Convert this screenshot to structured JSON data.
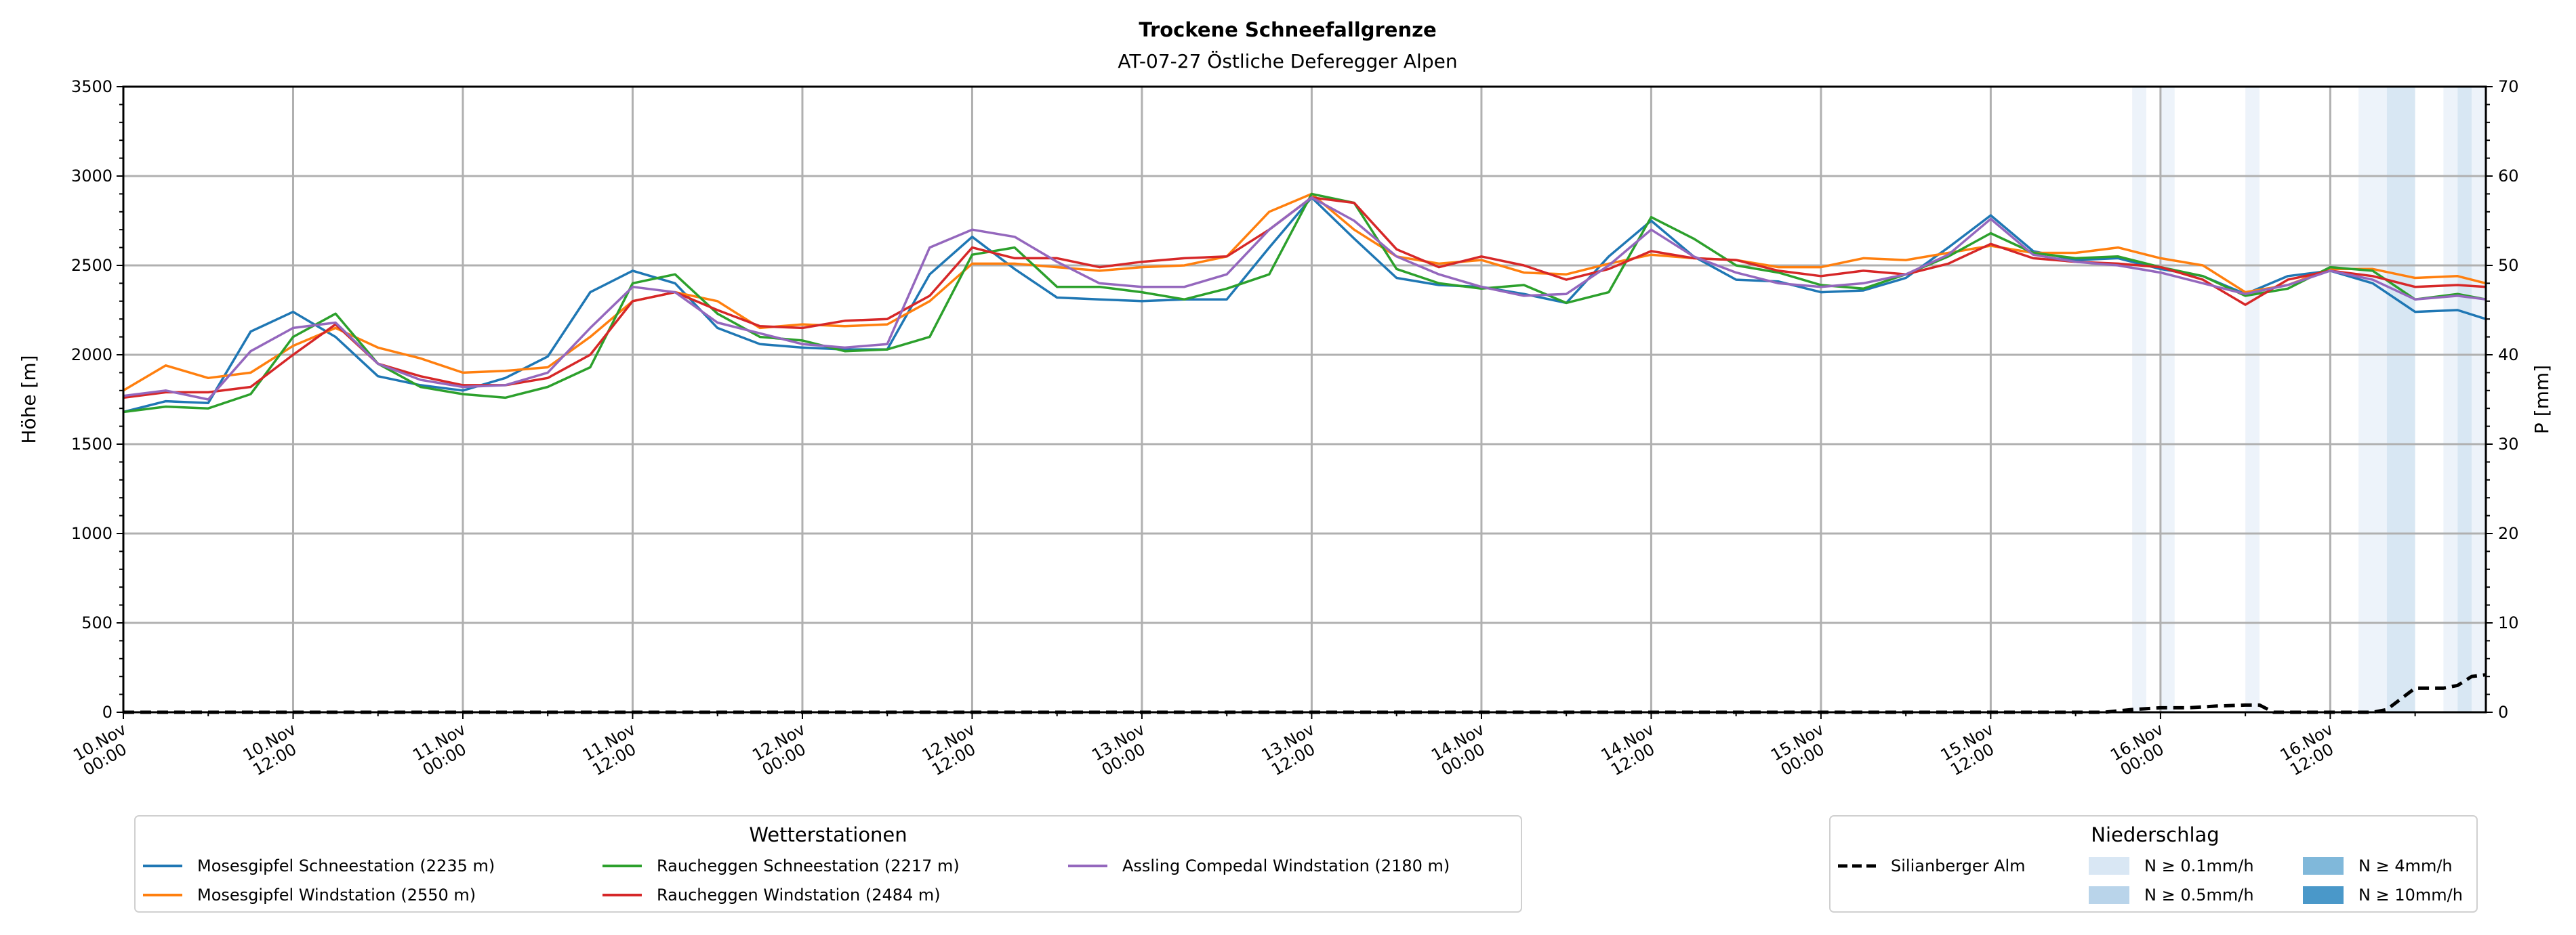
{
  "chart_data": {
    "type": "line",
    "title": "Trockene Schneefallgrenze",
    "subtitle": "AT-07-27 Östliche Deferegger Alpen",
    "ylabel": "Höhe [m]",
    "y2label": "P [mm]",
    "ylim": [
      0,
      3500
    ],
    "y2lim": [
      0,
      70
    ],
    "xlim_hours": [
      0,
      167
    ],
    "x_unit": "hours since 10.Nov 00:00",
    "grid": true,
    "y_ticks": [
      "0",
      "500",
      "1000",
      "1500",
      "2000",
      "2500",
      "3000",
      "3500"
    ],
    "y2_ticks": [
      "0",
      "10",
      "20",
      "30",
      "40",
      "50",
      "60",
      "70"
    ],
    "x_ticks": [
      {
        "day": "10.Nov",
        "time": "00:00"
      },
      {
        "day": "10.Nov",
        "time": "12:00"
      },
      {
        "day": "11.Nov",
        "time": "00:00"
      },
      {
        "day": "11.Nov",
        "time": "12:00"
      },
      {
        "day": "12.Nov",
        "time": "00:00"
      },
      {
        "day": "12.Nov",
        "time": "12:00"
      },
      {
        "day": "13.Nov",
        "time": "00:00"
      },
      {
        "day": "13.Nov",
        "time": "12:00"
      },
      {
        "day": "14.Nov",
        "time": "00:00"
      },
      {
        "day": "14.Nov",
        "time": "12:00"
      },
      {
        "day": "15.Nov",
        "time": "00:00"
      },
      {
        "day": "15.Nov",
        "time": "12:00"
      },
      {
        "day": "16.Nov",
        "time": "00:00"
      },
      {
        "day": "16.Nov",
        "time": "12:00"
      }
    ],
    "x": [
      0,
      3,
      6,
      9,
      12,
      15,
      18,
      21,
      24,
      27,
      30,
      33,
      36,
      39,
      42,
      45,
      48,
      51,
      54,
      57,
      60,
      63,
      66,
      69,
      72,
      75,
      78,
      81,
      84,
      87,
      90,
      93,
      96,
      99,
      102,
      105,
      108,
      111,
      114,
      117,
      120,
      123,
      126,
      129,
      132,
      135,
      138,
      141,
      144,
      147,
      150,
      153,
      156,
      159,
      162,
      165,
      167
    ],
    "series": [
      {
        "name": "Mosesgipfel Schneestation (2235 m)",
        "color": "#1f77b4",
        "values": [
          1680,
          1740,
          1730,
          2130,
          2240,
          2100,
          1880,
          1830,
          1800,
          1870,
          1990,
          2350,
          2470,
          2400,
          2150,
          2060,
          2040,
          2030,
          2030,
          2450,
          2660,
          2480,
          2320,
          2310,
          2300,
          2310,
          2310,
          2600,
          2880,
          2650,
          2430,
          2390,
          2380,
          2340,
          2290,
          2550,
          2750,
          2550,
          2420,
          2410,
          2350,
          2360,
          2430,
          2600,
          2780,
          2580,
          2530,
          2540,
          2480,
          2440,
          2340,
          2440,
          2470,
          2400,
          2240,
          2250,
          2200
        ]
      },
      {
        "name": "Mosesgipfel Windstation (2550 m)",
        "color": "#ff7f0e",
        "values": [
          1800,
          1940,
          1870,
          1900,
          2050,
          2150,
          2040,
          1980,
          1900,
          1910,
          1930,
          2100,
          2300,
          2350,
          2300,
          2150,
          2170,
          2160,
          2170,
          2300,
          2510,
          2510,
          2490,
          2470,
          2490,
          2500,
          2550,
          2800,
          2900,
          2700,
          2550,
          2510,
          2530,
          2460,
          2450,
          2510,
          2560,
          2540,
          2530,
          2490,
          2490,
          2540,
          2530,
          2570,
          2610,
          2570,
          2570,
          2600,
          2540,
          2500,
          2350,
          2390,
          2480,
          2480,
          2430,
          2440,
          2400
        ]
      },
      {
        "name": "Raucheggen Schneestation (2217 m)",
        "color": "#2ca02c",
        "values": [
          1680,
          1710,
          1700,
          1780,
          2100,
          2230,
          1950,
          1820,
          1780,
          1760,
          1820,
          1930,
          2400,
          2450,
          2230,
          2100,
          2080,
          2020,
          2030,
          2100,
          2560,
          2600,
          2380,
          2380,
          2350,
          2310,
          2370,
          2450,
          2900,
          2850,
          2480,
          2400,
          2370,
          2390,
          2290,
          2350,
          2770,
          2650,
          2500,
          2460,
          2390,
          2370,
          2450,
          2550,
          2680,
          2570,
          2540,
          2550,
          2490,
          2440,
          2330,
          2370,
          2490,
          2470,
          2310,
          2340,
          2310
        ]
      },
      {
        "name": "Raucheggen Windstation (2484 m)",
        "color": "#d62728",
        "values": [
          1760,
          1790,
          1790,
          1820,
          2000,
          2170,
          1950,
          1880,
          1830,
          1830,
          1870,
          2000,
          2300,
          2350,
          2250,
          2160,
          2150,
          2190,
          2200,
          2330,
          2600,
          2540,
          2540,
          2490,
          2520,
          2540,
          2550,
          2700,
          2880,
          2850,
          2590,
          2490,
          2550,
          2500,
          2420,
          2480,
          2580,
          2540,
          2530,
          2470,
          2440,
          2470,
          2450,
          2510,
          2620,
          2540,
          2520,
          2510,
          2490,
          2420,
          2280,
          2420,
          2470,
          2440,
          2380,
          2390,
          2380
        ]
      },
      {
        "name": "Assling Compedal Windstation (2180 m)",
        "color": "#9467bd",
        "values": [
          1770,
          1800,
          1750,
          2020,
          2150,
          2180,
          1950,
          1860,
          1820,
          1830,
          1900,
          2150,
          2380,
          2350,
          2180,
          2120,
          2060,
          2040,
          2060,
          2600,
          2700,
          2660,
          2520,
          2400,
          2380,
          2380,
          2450,
          2700,
          2880,
          2750,
          2550,
          2450,
          2380,
          2330,
          2340,
          2500,
          2700,
          2550,
          2460,
          2400,
          2380,
          2400,
          2450,
          2560,
          2760,
          2560,
          2520,
          2500,
          2460,
          2400,
          2340,
          2390,
          2470,
          2420,
          2310,
          2330,
          2310
        ]
      }
    ],
    "precip_series": {
      "name": "Silianberger Alm",
      "color": "#000000",
      "style": "dashed",
      "axis": "right",
      "x": [
        0,
        140,
        142,
        144,
        146,
        148,
        150,
        151,
        152,
        159,
        160,
        162,
        164,
        165,
        166,
        167
      ],
      "values": [
        0,
        0,
        0.3,
        0.5,
        0.5,
        0.7,
        0.8,
        0.8,
        0,
        0,
        0.3,
        2.7,
        2.7,
        3.0,
        4.0,
        4.2
      ]
    },
    "precip_bands": [
      {
        "from": 142,
        "to": 143,
        "level": "0.1"
      },
      {
        "from": 144,
        "to": 145,
        "level": "0.1"
      },
      {
        "from": 150,
        "to": 151,
        "level": "0.1"
      },
      {
        "from": 158,
        "to": 160,
        "level": "0.1"
      },
      {
        "from": 160,
        "to": 162,
        "level": "0.5"
      },
      {
        "from": 164,
        "to": 165,
        "level": "0.1"
      },
      {
        "from": 165,
        "to": 166,
        "level": "0.5"
      },
      {
        "from": 166,
        "to": 167,
        "level": "0.1"
      }
    ],
    "band_colors": {
      "0.1": "#edf3fa",
      "0.5": "#d8e7f3"
    },
    "legend_stations": {
      "title": "Wetterstationen",
      "placement": "bottom-left"
    },
    "legend_precip": {
      "title": "Niederschlag",
      "placement": "bottom-right",
      "line_label": "Silianberger Alm",
      "levels": [
        {
          "label": "N ≥ 0.1mm/h",
          "color": "#d9e7f4"
        },
        {
          "label": "N ≥ 0.5mm/h",
          "color": "#b9d4ea"
        },
        {
          "label": "N ≥ 4mm/h",
          "color": "#80b8da"
        },
        {
          "label": "N ≥ 10mm/h",
          "color": "#4a98c9"
        }
      ]
    }
  }
}
